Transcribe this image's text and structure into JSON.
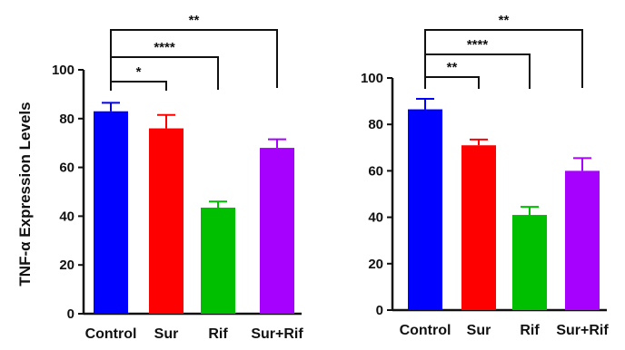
{
  "figure": {
    "ylabel": "TNF-α Expression Levels"
  },
  "chart_data": [
    {
      "type": "bar",
      "panel": "left",
      "title": "",
      "xlabel": "",
      "ylabel": "TNF-α Expression Levels",
      "ylim": [
        0,
        100
      ],
      "yticks": [
        0,
        20,
        40,
        60,
        80,
        100
      ],
      "categories": [
        "Control",
        "Sur",
        "Rif",
        "Sur+Rif"
      ],
      "values": [
        83,
        76,
        43.5,
        68
      ],
      "errors": [
        3.5,
        5.5,
        2.5,
        3.5
      ],
      "colors": [
        "#0000ff",
        "#ff0000",
        "#00bf00",
        "#a600ff"
      ],
      "grid": false,
      "significance": [
        {
          "from": "Control",
          "to": "Sur",
          "label": "*"
        },
        {
          "from": "Control",
          "to": "Rif",
          "label": "****"
        },
        {
          "from": "Control",
          "to": "Sur+Rif",
          "label": "**"
        }
      ]
    },
    {
      "type": "bar",
      "panel": "right",
      "title": "",
      "xlabel": "",
      "ylabel": "",
      "ylim": [
        0,
        100
      ],
      "yticks": [
        0,
        20,
        40,
        60,
        80,
        100
      ],
      "categories": [
        "Control",
        "Sur",
        "Rif",
        "Sur+Rif"
      ],
      "values": [
        86.5,
        71,
        41,
        60
      ],
      "errors": [
        4.5,
        2.5,
        3.5,
        5.5
      ],
      "colors": [
        "#0000ff",
        "#ff0000",
        "#00bf00",
        "#a600ff"
      ],
      "grid": false,
      "significance": [
        {
          "from": "Control",
          "to": "Sur",
          "label": "**"
        },
        {
          "from": "Control",
          "to": "Rif",
          "label": "****"
        },
        {
          "from": "Control",
          "to": "Sur+Rif",
          "label": "**"
        }
      ]
    }
  ]
}
